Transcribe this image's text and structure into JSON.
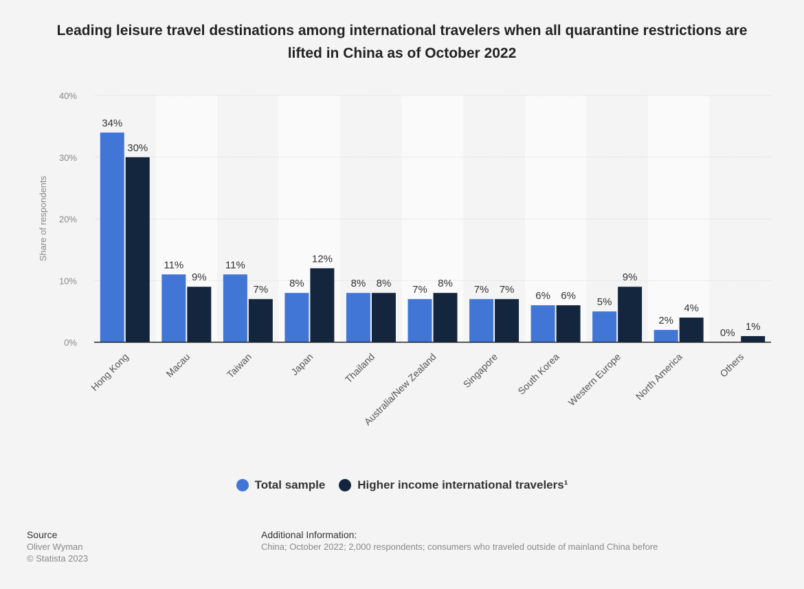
{
  "chart_data": {
    "type": "bar",
    "title": "Leading leisure travel destinations among international travelers when all quarantine restrictions are lifted in China as of October 2022",
    "ylabel": "Share of respondents",
    "xlabel": "",
    "ylim": [
      0,
      40
    ],
    "yticks": [
      "0%",
      "10%",
      "20%",
      "30%",
      "40%"
    ],
    "grid": true,
    "legend_position": "bottom",
    "categories": [
      "Hong Kong",
      "Macau",
      "Taiwan",
      "Japan",
      "Thailand",
      "Australia/New Zealand",
      "Singapore",
      "South Korea",
      "Western Europe",
      "North America",
      "Others"
    ],
    "series": [
      {
        "name": "Total sample",
        "color": "#4176d6",
        "values": [
          34,
          11,
          11,
          8,
          8,
          7,
          7,
          6,
          5,
          2,
          0
        ]
      },
      {
        "name": "Higher income international travelers¹",
        "color": "#14263e",
        "values": [
          30,
          9,
          7,
          12,
          8,
          8,
          7,
          6,
          9,
          4,
          1
        ]
      }
    ]
  },
  "footer": {
    "source_label": "Source",
    "source": "Oliver Wyman",
    "copyright": "© Statista 2023",
    "additional_label": "Additional Information:",
    "additional": "China; October 2022; 2,000 respondents; consumers who traveled outside of mainland China before"
  }
}
